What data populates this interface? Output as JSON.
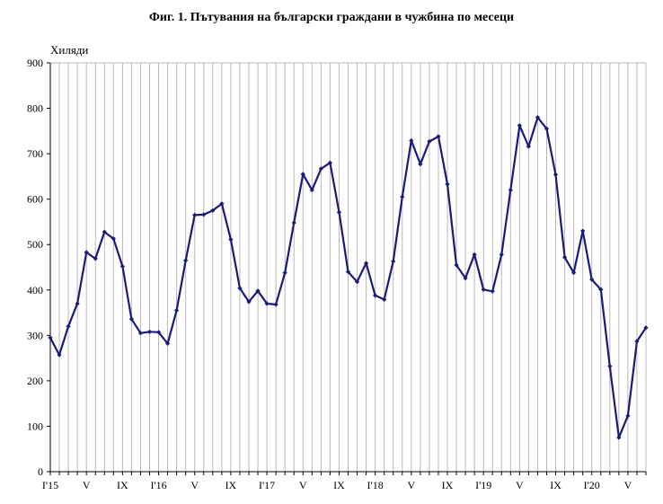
{
  "chart_data": {
    "type": "line",
    "title": "Фиг. 1. Пътувания на български граждани в чужбина по месеци",
    "ylabel": "Хиляди",
    "xlabel": "",
    "ylim": [
      0,
      900
    ],
    "yticks": [
      0,
      100,
      200,
      300,
      400,
      500,
      600,
      700,
      800,
      900
    ],
    "grid": "vertical",
    "line_color": "#1a1a7a",
    "xtick_labels": [
      {
        "index": 0,
        "label": "I'15"
      },
      {
        "index": 4,
        "label": "V"
      },
      {
        "index": 8,
        "label": "IX"
      },
      {
        "index": 12,
        "label": "I'16"
      },
      {
        "index": 16,
        "label": "V"
      },
      {
        "index": 20,
        "label": "IX"
      },
      {
        "index": 24,
        "label": "I'17"
      },
      {
        "index": 28,
        "label": "V"
      },
      {
        "index": 32,
        "label": "IX"
      },
      {
        "index": 36,
        "label": "I'18"
      },
      {
        "index": 40,
        "label": "V"
      },
      {
        "index": 44,
        "label": "IX"
      },
      {
        "index": 48,
        "label": "I'19"
      },
      {
        "index": 52,
        "label": "V"
      },
      {
        "index": 56,
        "label": "IX"
      },
      {
        "index": 60,
        "label": "I'20"
      },
      {
        "index": 64,
        "label": "V"
      }
    ],
    "values": [
      295,
      257,
      320,
      370,
      483,
      469,
      528,
      513,
      452,
      336,
      305,
      308,
      307,
      282,
      355,
      465,
      565,
      566,
      575,
      590,
      511,
      404,
      374,
      398,
      370,
      368,
      438,
      548,
      655,
      620,
      667,
      680,
      571,
      440,
      418,
      459,
      388,
      379,
      463,
      605,
      729,
      677,
      727,
      738,
      633,
      455,
      426,
      478,
      401,
      397,
      478,
      620,
      762,
      716,
      780,
      755,
      654,
      472,
      438,
      530,
      423,
      401,
      232,
      75,
      123,
      287,
      317
    ]
  }
}
